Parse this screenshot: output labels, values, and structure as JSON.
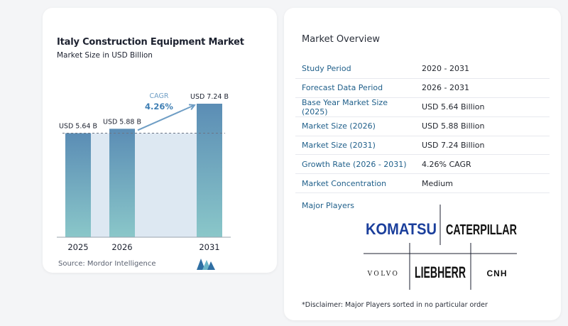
{
  "chart_data": {
    "type": "bar",
    "title": "Italy Construction Equipment Market",
    "subtitle": "Market Size in USD Billion",
    "categories": [
      "2025",
      "2026",
      "2031"
    ],
    "values": [
      5.64,
      5.88,
      7.24
    ],
    "value_labels": [
      "USD 5.64 B",
      "USD 5.88 B",
      "USD 7.24 B"
    ],
    "cagr_label": "CAGR",
    "cagr_value": "4.26%",
    "ylim": [
      0,
      7.24
    ],
    "bar_color_top": "#5b8db5",
    "bar_color_bottom": "#8ac7c9",
    "band_color": "#dde8f2"
  },
  "source": "Source:  Mordor Intelligence",
  "overview": {
    "title": "Market Overview",
    "rows": [
      {
        "key": "Study Period",
        "value": "2020 - 2031"
      },
      {
        "key": "Forecast Data Period",
        "value": "2026 - 2031"
      },
      {
        "key": "Base Year Market Size (2025)",
        "value": "USD 5.64 Billion"
      },
      {
        "key": "Market Size (2026)",
        "value": "USD 5.88 Billion"
      },
      {
        "key": "Market Size (2031)",
        "value": "USD 7.24 Billion"
      },
      {
        "key": "Growth Rate (2026 - 2031)",
        "value": "4.26% CAGR"
      },
      {
        "key": "Market Concentration",
        "value": "Medium"
      }
    ],
    "major_players_label": "Major Players",
    "players": [
      "KOMATSU",
      "CATERPILLAR",
      "LIEBHERR",
      "VOLVO",
      "CNH"
    ],
    "disclaimer": "*Disclaimer: Major Players sorted in no particular order"
  }
}
